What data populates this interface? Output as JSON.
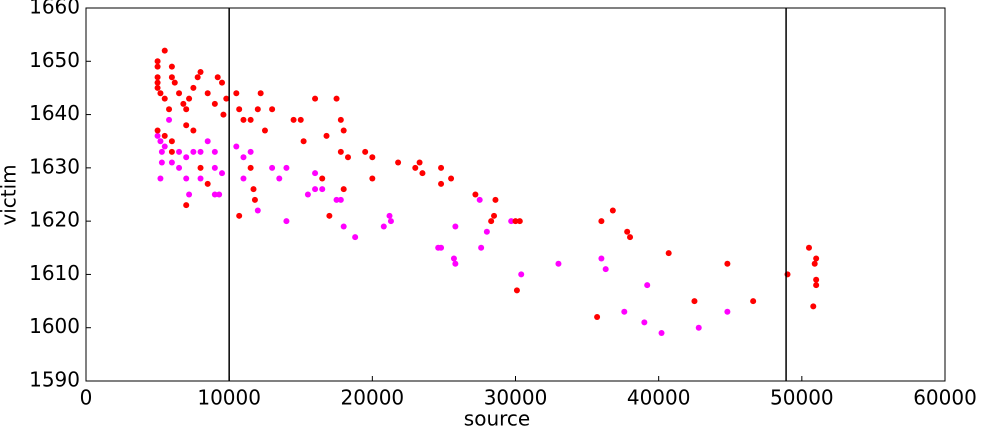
{
  "chart_data": {
    "type": "scatter",
    "xlabel": "source",
    "ylabel": "victim",
    "xlim": [
      0,
      60000
    ],
    "ylim": [
      1590,
      1660
    ],
    "xticks": [
      0,
      10000,
      20000,
      30000,
      40000,
      50000,
      60000
    ],
    "yticks": [
      1590,
      1600,
      1610,
      1620,
      1630,
      1640,
      1650,
      1660
    ],
    "vlines": [
      10000,
      48900
    ],
    "series": [
      {
        "color": "#ff00ff",
        "x": [
          5000,
          5200,
          5300,
          5500,
          5300,
          5200,
          5800,
          6000,
          6500,
          6500,
          7000,
          7000,
          7200,
          7500,
          8000,
          8000,
          8500,
          9000,
          9000,
          9300,
          9500,
          9000,
          10500,
          11000,
          11500,
          11000,
          12000,
          13000,
          13500,
          14000,
          14000,
          15500,
          16000,
          16500,
          16000,
          17500,
          17800,
          18000,
          18800,
          20800,
          21200,
          21300,
          24600,
          24800,
          25800,
          25700,
          25800,
          27600,
          27500,
          28000,
          29700,
          30400,
          33000,
          36000,
          36300,
          37600,
          39000,
          39200,
          40200,
          42800,
          44800
        ],
        "values": [
          1636,
          1635,
          1633,
          1634,
          1631,
          1628,
          1639,
          1631,
          1630,
          1633,
          1632,
          1628,
          1625,
          1633,
          1633,
          1628,
          1635,
          1633,
          1630,
          1625,
          1629,
          1625,
          1634,
          1632,
          1633,
          1628,
          1622,
          1630,
          1628,
          1630,
          1620,
          1625,
          1626,
          1626,
          1629,
          1624,
          1624,
          1619,
          1617,
          1619,
          1621,
          1620,
          1615,
          1615,
          1619,
          1613,
          1612,
          1615,
          1624,
          1618,
          1620,
          1610,
          1612,
          1613,
          1611,
          1603,
          1601,
          1608,
          1599,
          1600,
          1603
        ]
      },
      {
        "color": "#ff0000",
        "x": [
          5000,
          5000,
          5000,
          5000,
          5000,
          5200,
          5500,
          5500,
          5800,
          6000,
          6000,
          6200,
          6500,
          6800,
          7000,
          7200,
          7500,
          7800,
          8000,
          8500,
          9000,
          9200,
          9500,
          9600,
          9800,
          5000,
          5500,
          6000,
          6000,
          7000,
          7500,
          8000,
          8500,
          7000,
          10500,
          10700,
          11000,
          11500,
          12000,
          12200,
          12500,
          11500,
          11700,
          11800,
          10700,
          13000,
          14500,
          15000,
          15200,
          16000,
          16800,
          17500,
          17800,
          18000,
          17800,
          18300,
          18000,
          16500,
          17000,
          19500,
          20000,
          20000,
          21800,
          23000,
          23300,
          23500,
          24800,
          24800,
          25500,
          27200,
          28300,
          28600,
          28500,
          30000,
          30300,
          30100,
          36000,
          36800,
          37800,
          38000,
          40700,
          35700,
          42500,
          44800,
          46600,
          49000,
          50500,
          50800,
          51000,
          50900,
          51000,
          51000
        ],
        "values": [
          1650,
          1649,
          1647,
          1646,
          1645,
          1644,
          1652,
          1643,
          1641,
          1649,
          1647,
          1646,
          1644,
          1642,
          1641,
          1643,
          1645,
          1647,
          1648,
          1644,
          1642,
          1647,
          1646,
          1640,
          1643,
          1637,
          1636,
          1635,
          1633,
          1638,
          1637,
          1630,
          1627,
          1623,
          1644,
          1641,
          1639,
          1639,
          1641,
          1644,
          1637,
          1630,
          1626,
          1624,
          1621,
          1641,
          1639,
          1639,
          1635,
          1643,
          1636,
          1643,
          1639,
          1637,
          1633,
          1632,
          1626,
          1628,
          1621,
          1633,
          1632,
          1628,
          1631,
          1630,
          1631,
          1629,
          1630,
          1627,
          1628,
          1625,
          1620,
          1624,
          1621,
          1620,
          1620,
          1607,
          1620,
          1622,
          1618,
          1617,
          1614,
          1602,
          1605,
          1612,
          1605,
          1610,
          1615,
          1604,
          1613,
          1612,
          1609,
          1608
        ]
      }
    ]
  }
}
